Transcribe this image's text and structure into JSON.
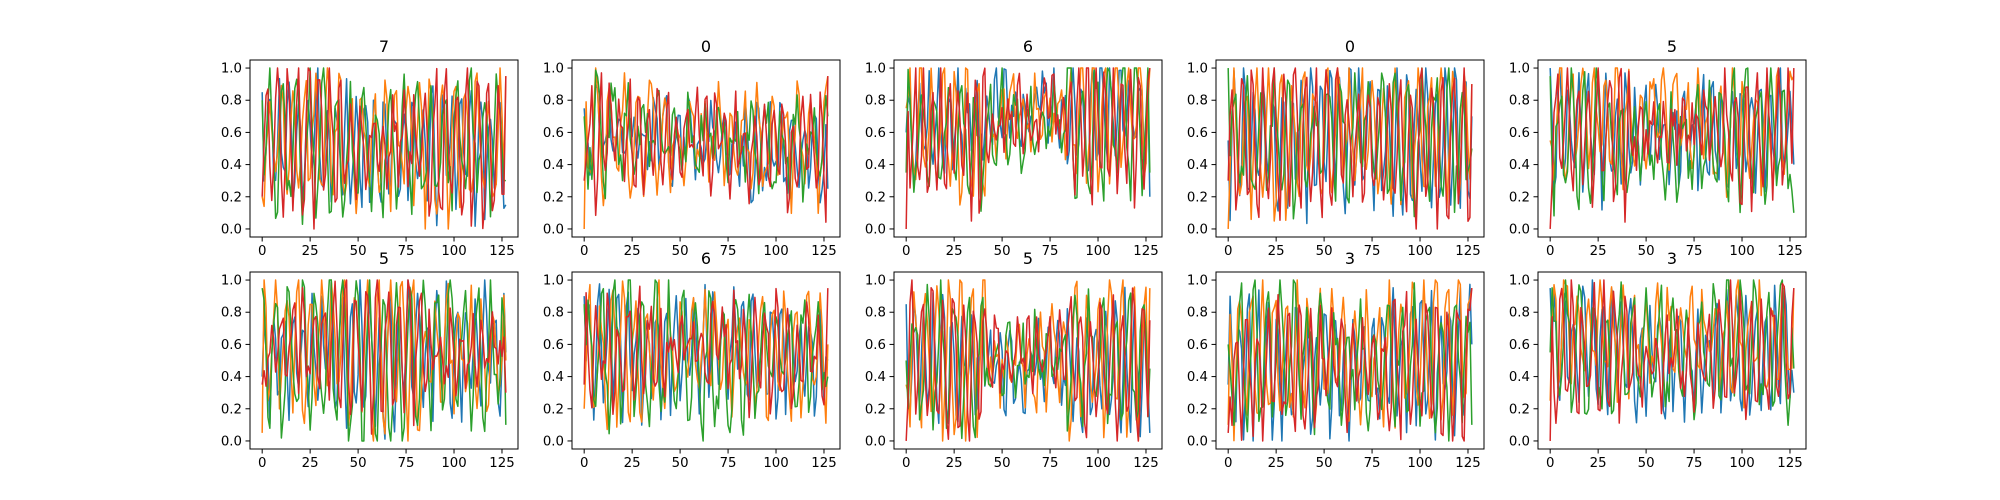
{
  "chart_data": {
    "type": "line",
    "layout": "2 rows x 5 columns of line panels",
    "series_colors": [
      "#1f77b4",
      "#ff7f0e",
      "#2ca02c",
      "#d62728"
    ],
    "x_range": [
      0,
      127
    ],
    "xlim": [
      -6.35,
      133.35
    ],
    "ylim": [
      -0.05,
      1.05
    ],
    "x_ticks": [
      0,
      25,
      50,
      75,
      100,
      125
    ],
    "y_ticks": [
      0.0,
      0.2,
      0.4,
      0.6,
      0.8,
      1.0
    ],
    "x_tick_labels": [
      "0",
      "25",
      "50",
      "75",
      "100",
      "125"
    ],
    "y_tick_labels": [
      "0.0",
      "0.2",
      "0.4",
      "0.6",
      "0.8",
      "1.0"
    ],
    "grid": false,
    "legend": "none",
    "panels": [
      {
        "title": "7",
        "series": [
          {
            "start": 0.85,
            "end": 0.15,
            "amp": [
              0.3,
              0.3,
              0.35
            ],
            "period": 5.0,
            "mid": [
              0.55,
              0.5,
              0.5
            ]
          },
          {
            "start": 0.2,
            "end": 0.95,
            "amp": [
              0.35,
              0.3,
              0.4
            ],
            "period": 6.0,
            "mid": [
              0.6,
              0.55,
              0.55
            ]
          },
          {
            "start": 0.8,
            "end": 0.3,
            "amp": [
              0.4,
              0.3,
              0.35
            ],
            "period": 7.0,
            "mid": [
              0.55,
              0.5,
              0.55
            ]
          },
          {
            "start": 0.2,
            "end": 0.95,
            "amp": [
              0.4,
              0.2,
              0.45
            ],
            "period": 5.5,
            "mid": [
              0.55,
              0.55,
              0.5
            ]
          }
        ]
      },
      {
        "title": "0",
        "series": [
          {
            "start": 0.75,
            "end": 0.25,
            "amp": [
              0.2,
              0.15,
              0.25
            ],
            "period": 6.0,
            "mid": [
              0.55,
              0.55,
              0.45
            ]
          },
          {
            "start": 0.0,
            "end": 0.95,
            "amp": [
              0.3,
              0.2,
              0.3
            ],
            "period": 7.0,
            "mid": [
              0.6,
              0.55,
              0.55
            ]
          },
          {
            "start": 0.7,
            "end": 0.7,
            "amp": [
              0.25,
              0.15,
              0.25
            ],
            "period": 8.0,
            "mid": [
              0.6,
              0.55,
              0.5
            ]
          },
          {
            "start": 0.3,
            "end": 0.95,
            "amp": [
              0.3,
              0.2,
              0.3
            ],
            "period": 5.0,
            "mid": [
              0.55,
              0.55,
              0.5
            ]
          }
        ]
      },
      {
        "title": "6",
        "series": [
          {
            "start": 0.6,
            "end": 0.2,
            "amp": [
              0.25,
              0.15,
              0.3
            ],
            "period": 5.0,
            "mid": [
              0.65,
              0.75,
              0.7
            ]
          },
          {
            "start": 0.75,
            "end": 1.0,
            "amp": [
              0.35,
              0.15,
              0.35
            ],
            "period": 6.0,
            "mid": [
              0.6,
              0.7,
              0.7
            ]
          },
          {
            "start": 0.35,
            "end": 0.35,
            "amp": [
              0.3,
              0.2,
              0.35
            ],
            "period": 7.0,
            "mid": [
              0.55,
              0.65,
              0.65
            ]
          },
          {
            "start": 0.0,
            "end": 1.0,
            "amp": [
              0.4,
              0.15,
              0.4
            ],
            "period": 4.5,
            "mid": [
              0.6,
              0.7,
              0.65
            ]
          }
        ]
      },
      {
        "title": "0",
        "series": [
          {
            "start": 0.55,
            "end": 0.7,
            "amp": [
              0.4,
              0.35,
              0.4
            ],
            "period": 5.0,
            "mid": [
              0.55,
              0.6,
              0.55
            ]
          },
          {
            "start": 0.0,
            "end": 0.9,
            "amp": [
              0.4,
              0.35,
              0.4
            ],
            "period": 6.0,
            "mid": [
              0.55,
              0.6,
              0.6
            ]
          },
          {
            "start": 1.0,
            "end": 0.5,
            "amp": [
              0.35,
              0.3,
              0.35
            ],
            "period": 7.0,
            "mid": [
              0.55,
              0.6,
              0.55
            ]
          },
          {
            "start": 0.3,
            "end": 0.9,
            "amp": [
              0.45,
              0.4,
              0.45
            ],
            "period": 5.5,
            "mid": [
              0.55,
              0.55,
              0.55
            ]
          }
        ]
      },
      {
        "title": "5",
        "series": [
          {
            "start": 1.0,
            "end": 0.4,
            "amp": [
              0.35,
              0.2,
              0.35
            ],
            "period": 5.0,
            "mid": [
              0.6,
              0.6,
              0.6
            ]
          },
          {
            "start": 0.55,
            "end": 0.95,
            "amp": [
              0.3,
              0.2,
              0.3
            ],
            "period": 6.0,
            "mid": [
              0.7,
              0.7,
              0.65
            ]
          },
          {
            "start": 0.95,
            "end": 0.1,
            "amp": [
              0.35,
              0.25,
              0.4
            ],
            "period": 6.5,
            "mid": [
              0.55,
              0.55,
              0.6
            ]
          },
          {
            "start": 0.0,
            "end": 1.0,
            "amp": [
              0.4,
              0.1,
              0.35
            ],
            "period": 5.5,
            "mid": [
              0.6,
              0.6,
              0.6
            ]
          }
        ]
      },
      {
        "title": "5",
        "series": [
          {
            "start": 0.4,
            "end": 0.55,
            "amp": [
              0.3,
              0.4,
              0.3
            ],
            "period": 5.0,
            "mid": [
              0.55,
              0.55,
              0.55
            ]
          },
          {
            "start": 0.05,
            "end": 0.5,
            "amp": [
              0.35,
              0.45,
              0.3
            ],
            "period": 6.0,
            "mid": [
              0.6,
              0.55,
              0.55
            ]
          },
          {
            "start": 0.95,
            "end": 0.1,
            "amp": [
              0.45,
              0.45,
              0.35
            ],
            "period": 7.0,
            "mid": [
              0.55,
              0.5,
              0.55
            ]
          },
          {
            "start": 0.35,
            "end": 0.3,
            "amp": [
              0.25,
              0.4,
              0.15
            ],
            "period": 5.5,
            "mid": [
              0.6,
              0.6,
              0.55
            ]
          }
        ]
      },
      {
        "title": "6",
        "series": [
          {
            "start": 0.9,
            "end": 0.5,
            "amp": [
              0.3,
              0.3,
              0.25
            ],
            "period": 5.0,
            "mid": [
              0.55,
              0.6,
              0.55
            ]
          },
          {
            "start": 0.2,
            "end": 0.6,
            "amp": [
              0.35,
              0.3,
              0.3
            ],
            "period": 6.0,
            "mid": [
              0.55,
              0.55,
              0.55
            ]
          },
          {
            "start": 0.85,
            "end": 0.4,
            "amp": [
              0.4,
              0.4,
              0.3
            ],
            "period": 7.0,
            "mid": [
              0.55,
              0.5,
              0.55
            ]
          },
          {
            "start": 0.35,
            "end": 0.95,
            "amp": [
              0.3,
              0.2,
              0.25
            ],
            "period": 5.5,
            "mid": [
              0.55,
              0.6,
              0.55
            ]
          }
        ]
      },
      {
        "title": "5",
        "series": [
          {
            "start": 0.85,
            "end": 0.05,
            "amp": [
              0.3,
              0.15,
              0.35
            ],
            "period": 5.0,
            "mid": [
              0.5,
              0.45,
              0.45
            ]
          },
          {
            "start": 0.35,
            "end": 0.95,
            "amp": [
              0.45,
              0.2,
              0.45
            ],
            "period": 6.0,
            "mid": [
              0.55,
              0.5,
              0.55
            ]
          },
          {
            "start": 0.5,
            "end": 0.45,
            "amp": [
              0.35,
              0.15,
              0.35
            ],
            "period": 7.0,
            "mid": [
              0.5,
              0.5,
              0.5
            ]
          },
          {
            "start": 0.0,
            "end": 0.75,
            "amp": [
              0.4,
              0.15,
              0.4
            ],
            "period": 5.5,
            "mid": [
              0.5,
              0.55,
              0.5
            ]
          }
        ]
      },
      {
        "title": "3",
        "series": [
          {
            "start": 0.35,
            "end": 0.6,
            "amp": [
              0.35,
              0.3,
              0.35
            ],
            "period": 5.0,
            "mid": [
              0.45,
              0.45,
              0.5
            ]
          },
          {
            "start": 0.1,
            "end": 0.95,
            "amp": [
              0.4,
              0.3,
              0.4
            ],
            "period": 6.0,
            "mid": [
              0.55,
              0.55,
              0.6
            ]
          },
          {
            "start": 0.6,
            "end": 0.1,
            "amp": [
              0.4,
              0.3,
              0.35
            ],
            "period": 7.0,
            "mid": [
              0.55,
              0.5,
              0.5
            ]
          },
          {
            "start": 0.05,
            "end": 0.95,
            "amp": [
              0.35,
              0.25,
              0.4
            ],
            "period": 5.5,
            "mid": [
              0.45,
              0.45,
              0.5
            ]
          }
        ]
      },
      {
        "title": "3",
        "series": [
          {
            "start": 0.95,
            "end": 0.3,
            "amp": [
              0.3,
              0.25,
              0.3
            ],
            "period": 5.0,
            "mid": [
              0.6,
              0.5,
              0.55
            ]
          },
          {
            "start": 0.25,
            "end": 0.95,
            "amp": [
              0.3,
              0.25,
              0.3
            ],
            "period": 6.0,
            "mid": [
              0.7,
              0.65,
              0.65
            ]
          },
          {
            "start": 0.55,
            "end": 0.45,
            "amp": [
              0.35,
              0.3,
              0.35
            ],
            "period": 7.0,
            "mid": [
              0.55,
              0.55,
              0.6
            ]
          },
          {
            "start": 0.0,
            "end": 0.95,
            "amp": [
              0.35,
              0.2,
              0.35
            ],
            "period": 5.5,
            "mid": [
              0.55,
              0.5,
              0.55
            ]
          }
        ]
      }
    ]
  }
}
